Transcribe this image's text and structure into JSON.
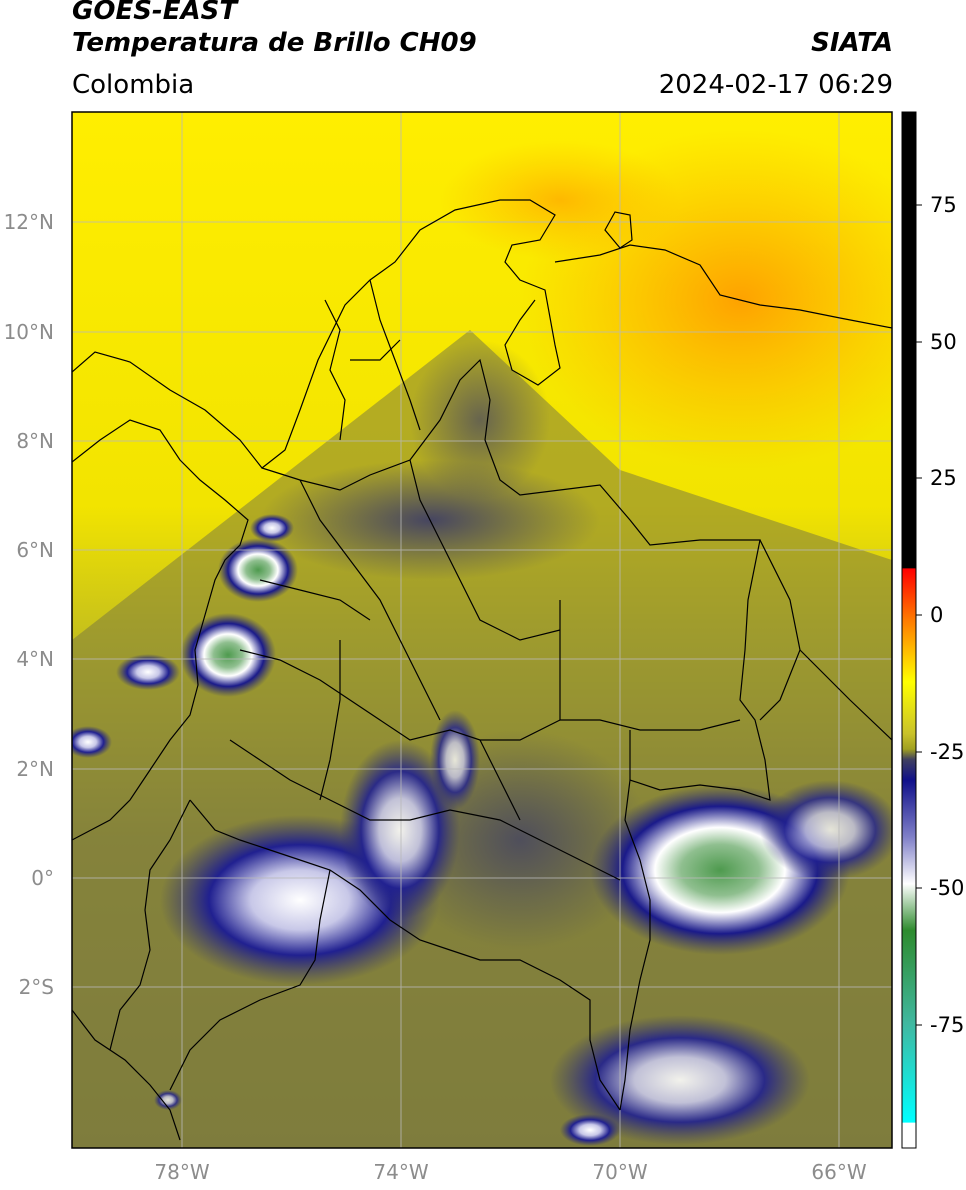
{
  "header": {
    "satellite": "GOES-EAST",
    "product": "Temperatura de Brillo CH09",
    "agency": "SIATA",
    "region": "Colombia",
    "datetime": "2024-02-17 06:29"
  },
  "map": {
    "lat_labels": [
      "12°N",
      "10°N",
      "8°N",
      "6°N",
      "4°N",
      "2°N",
      "0°",
      "2°S"
    ],
    "lon_labels": [
      "78°W",
      "74°W",
      "70°W",
      "66°W"
    ],
    "extent": {
      "lon_min": -80,
      "lon_max": -65,
      "lat_min": -5,
      "lat_max": 14
    }
  },
  "colorbar": {
    "ticks": [
      "75",
      "50",
      "25",
      "0",
      "-25",
      "-50",
      "-75"
    ],
    "colors": {
      "black": "#000000",
      "red": "#ff0000",
      "orange": "#ff8c00",
      "yellow": "#ffff00",
      "olive": "#a0a020",
      "slate": "#404060",
      "navy": "#10108a",
      "white": "#ffffff",
      "green": "#2e8b2e",
      "teal": "#20b2aa",
      "cyan": "#00ffff"
    }
  }
}
